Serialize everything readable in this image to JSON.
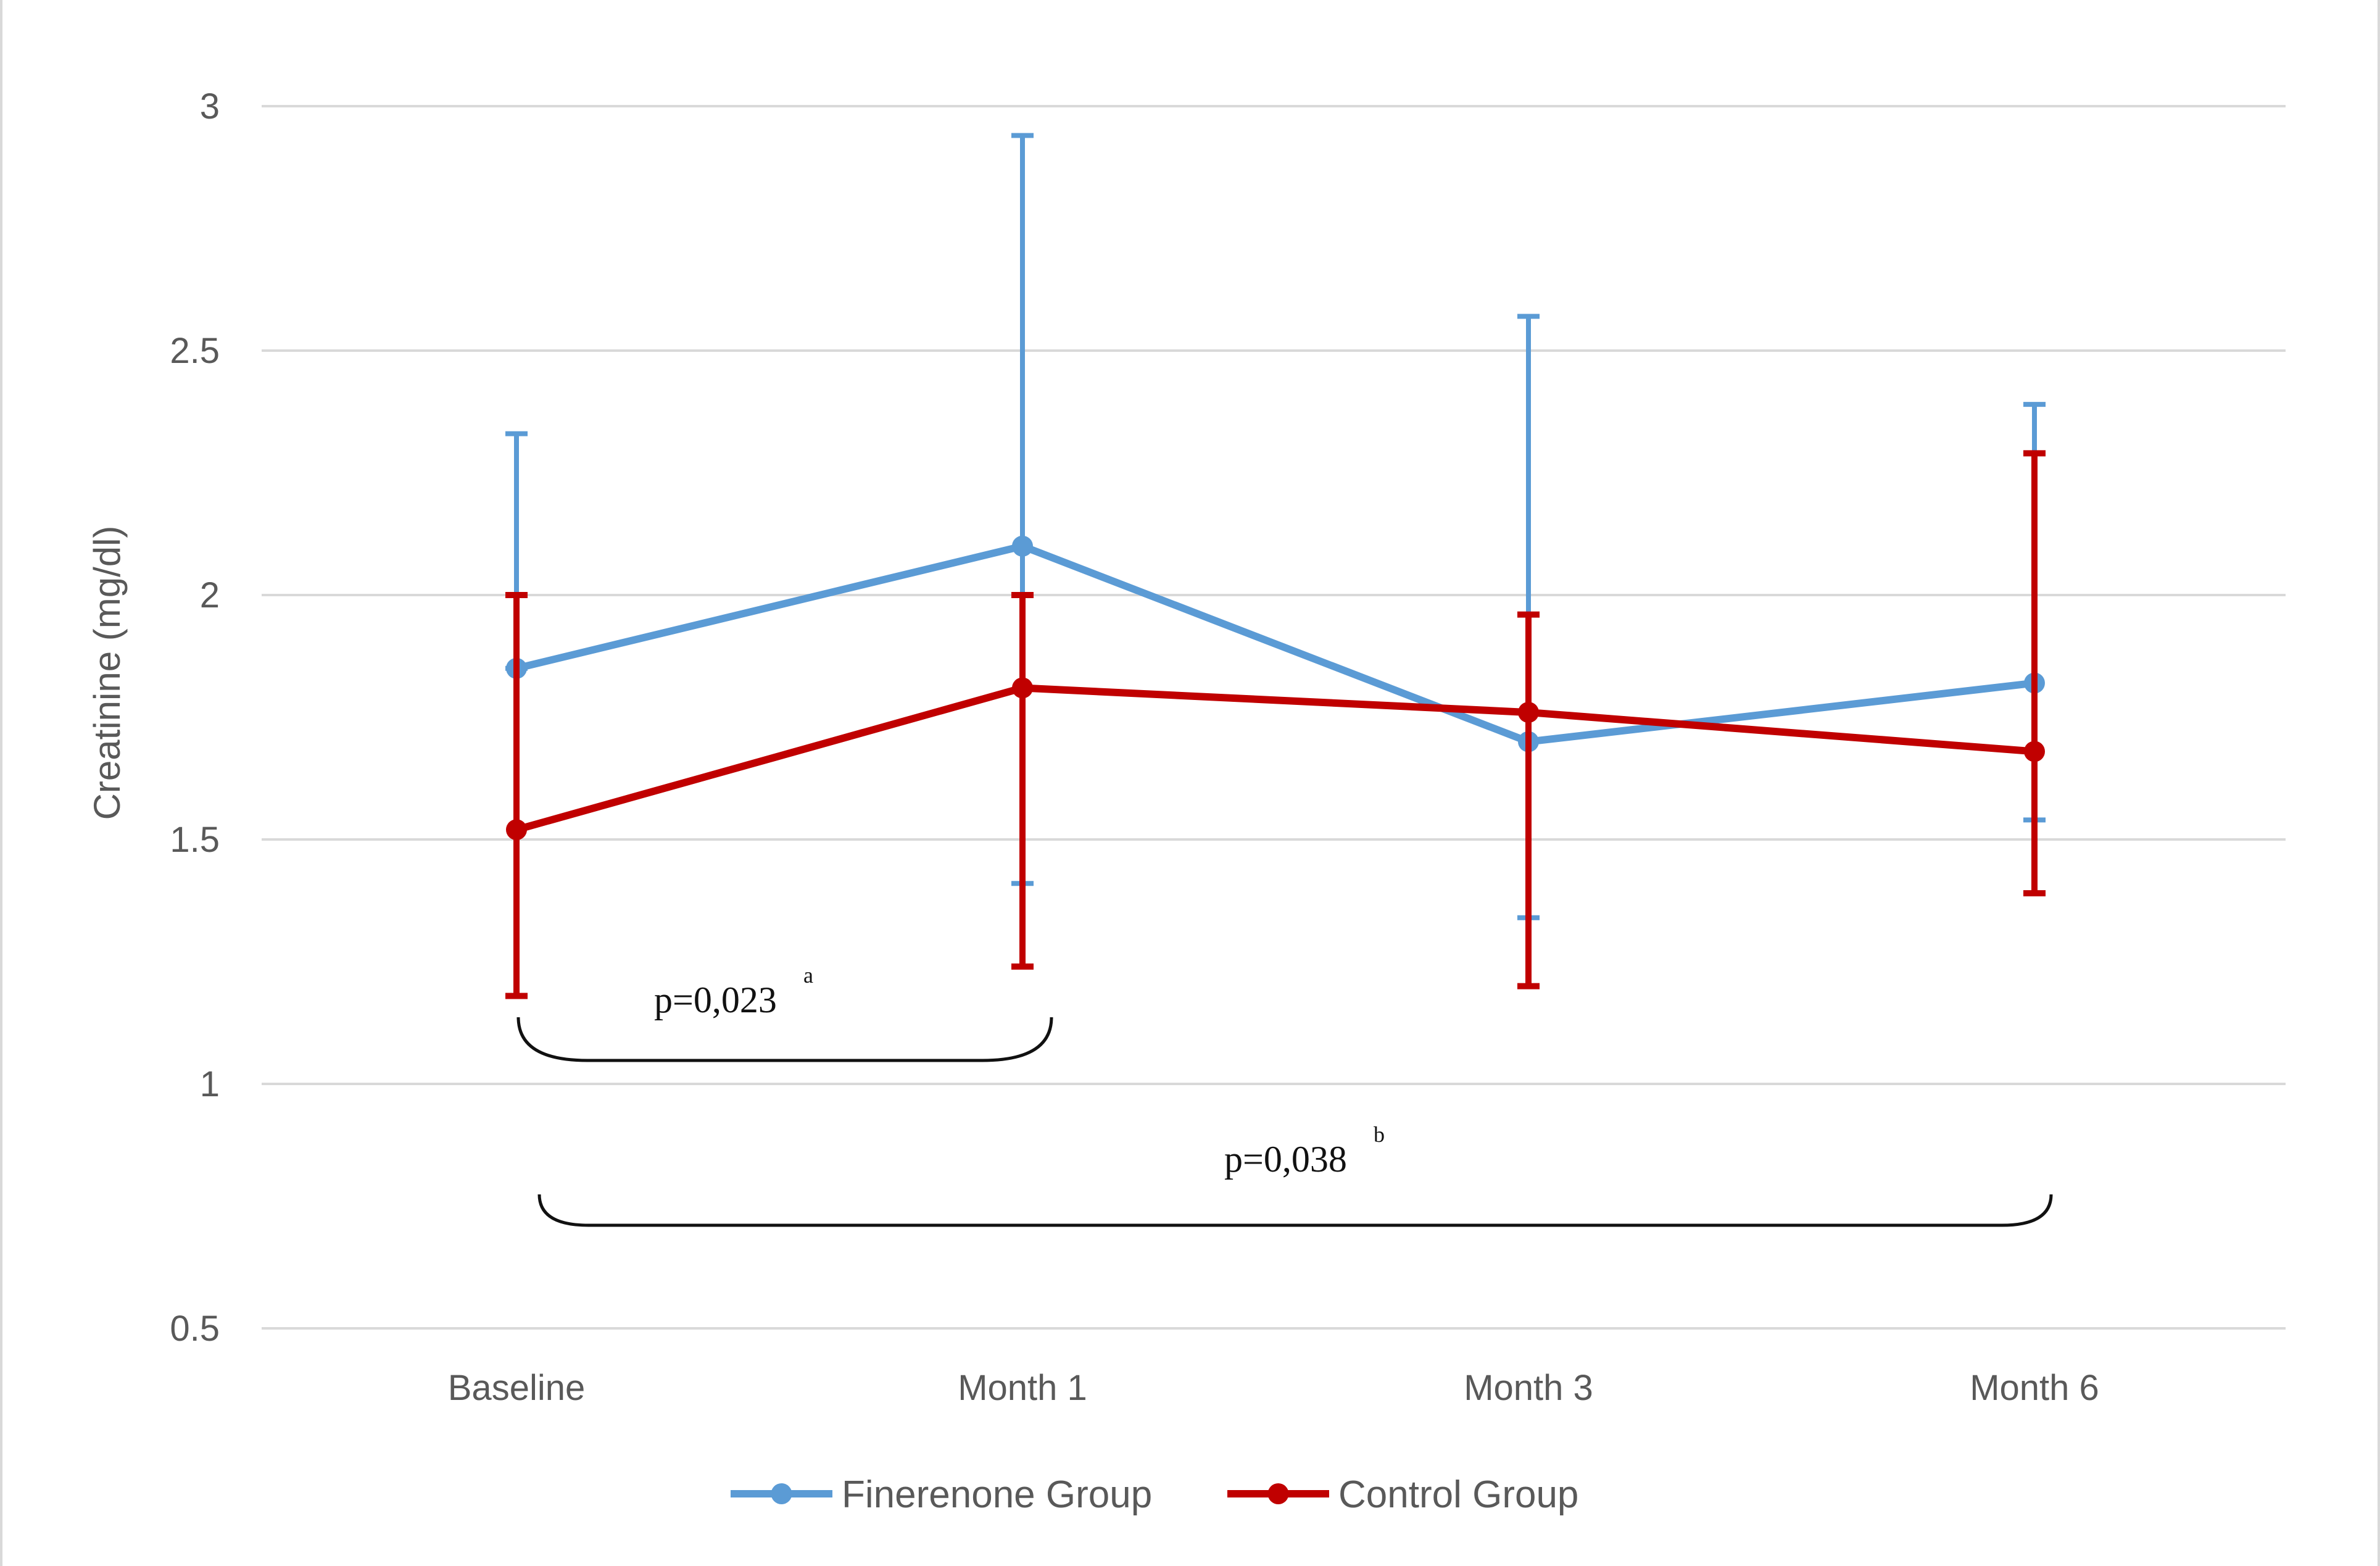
{
  "chart_data": {
    "type": "line",
    "title": "",
    "xlabel": "",
    "ylabel": "Creatinine (mg/dl)",
    "ylim": [
      0.5,
      3
    ],
    "yticks": [
      "0.5",
      "1",
      "1.5",
      "2",
      "2.5",
      "3"
    ],
    "grid": true,
    "legend_position": "bottom",
    "categories": [
      "Baseline",
      "Month 1",
      "Month 3",
      "Month 6"
    ],
    "series": [
      {
        "name": "Finerenone Group",
        "color": "#5b9bd5",
        "values": [
          1.85,
          2.1,
          1.7,
          1.82
        ],
        "error_upper": [
          2.33,
          2.94,
          2.57,
          2.39
        ],
        "error_lower": [
          1.85,
          1.41,
          1.34,
          1.54
        ]
      },
      {
        "name": "Control Group",
        "color": "#c00000",
        "values": [
          1.52,
          1.81,
          1.76,
          1.68
        ],
        "error_upper": [
          2.0,
          2.0,
          1.96,
          2.29
        ],
        "error_lower": [
          1.18,
          1.24,
          1.2,
          1.39
        ]
      }
    ],
    "annotations": [
      {
        "text": "p=0,023",
        "sup": "a",
        "from": "Baseline",
        "to": "Month 1"
      },
      {
        "text": "p=0,038",
        "sup": "b",
        "from": "Baseline",
        "to": "Month 6"
      }
    ]
  }
}
